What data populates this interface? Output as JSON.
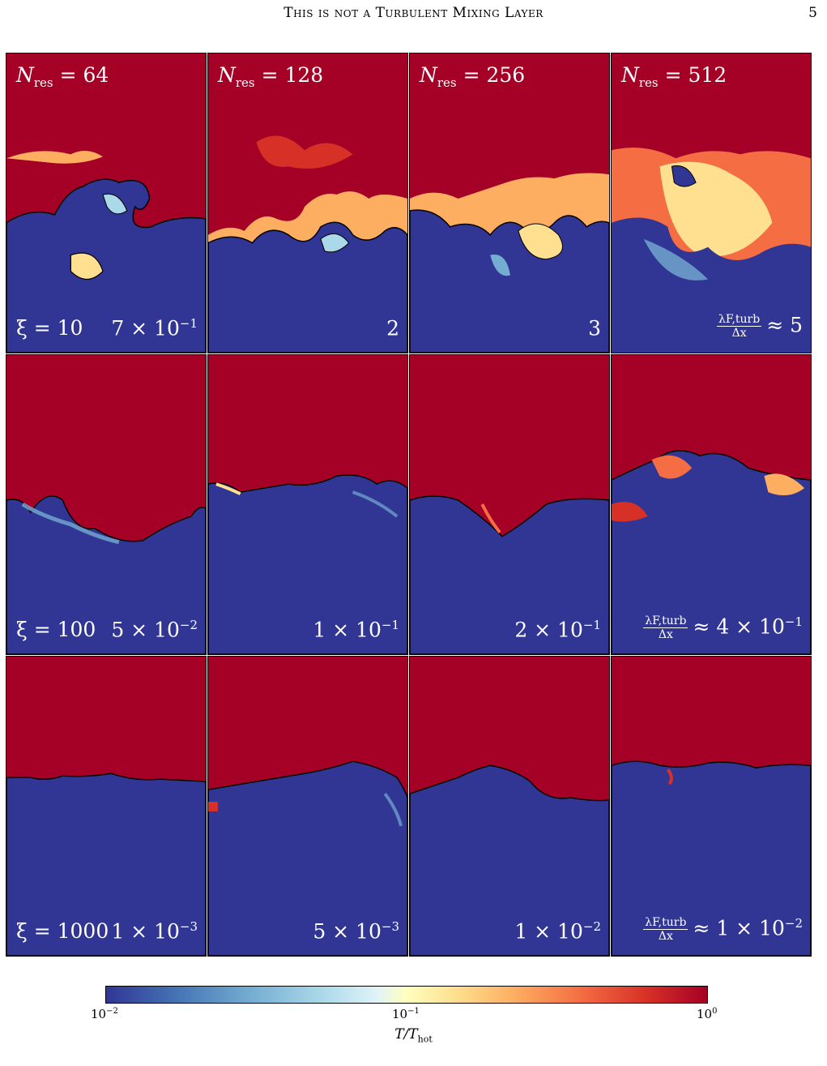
{
  "header": {
    "running_title": "This is not a Turbulent Mixing Layer",
    "page_number": "5"
  },
  "columns": [
    {
      "n_label": "N",
      "n_sub": "res",
      "n_value": "= 64"
    },
    {
      "n_label": "N",
      "n_sub": "res",
      "n_value": "= 128"
    },
    {
      "n_label": "N",
      "n_sub": "res",
      "n_value": "= 256"
    },
    {
      "n_label": "N",
      "n_sub": "res",
      "n_value": "= 512"
    }
  ],
  "rows": [
    {
      "xi": "ξ = 10",
      "ratios": [
        "7 × 10",
        "2",
        "3",
        "≈ 5"
      ],
      "ratio_exps": [
        "−1",
        "",
        "",
        ""
      ]
    },
    {
      "xi": "ξ = 100",
      "ratios": [
        "5 × 10",
        "1 × 10",
        "2 × 10",
        "≈ 4 × 10"
      ],
      "ratio_exps": [
        "−2",
        "−1",
        "−1",
        "−1"
      ]
    },
    {
      "xi": "ξ = 1000",
      "ratios": [
        "1 × 10",
        "5 × 10",
        "1 × 10",
        "≈ 1 × 10"
      ],
      "ratio_exps": [
        "−3",
        "−3",
        "−2",
        "−2"
      ]
    }
  ],
  "ratio_fraction": {
    "numerator": "λF,turb",
    "denominator": "Δx"
  },
  "colorbar": {
    "ticks": [
      {
        "base": "10",
        "exp": "−2"
      },
      {
        "base": "10",
        "exp": "−1"
      },
      {
        "base": "10",
        "exp": "0"
      }
    ],
    "label_main": "T/T",
    "label_sub": "hot",
    "colors": [
      "#313695",
      "#4575b4",
      "#74add1",
      "#abd9e9",
      "#ffffbf",
      "#fdae61",
      "#f46d43",
      "#d73027",
      "#a50026"
    ]
  }
}
